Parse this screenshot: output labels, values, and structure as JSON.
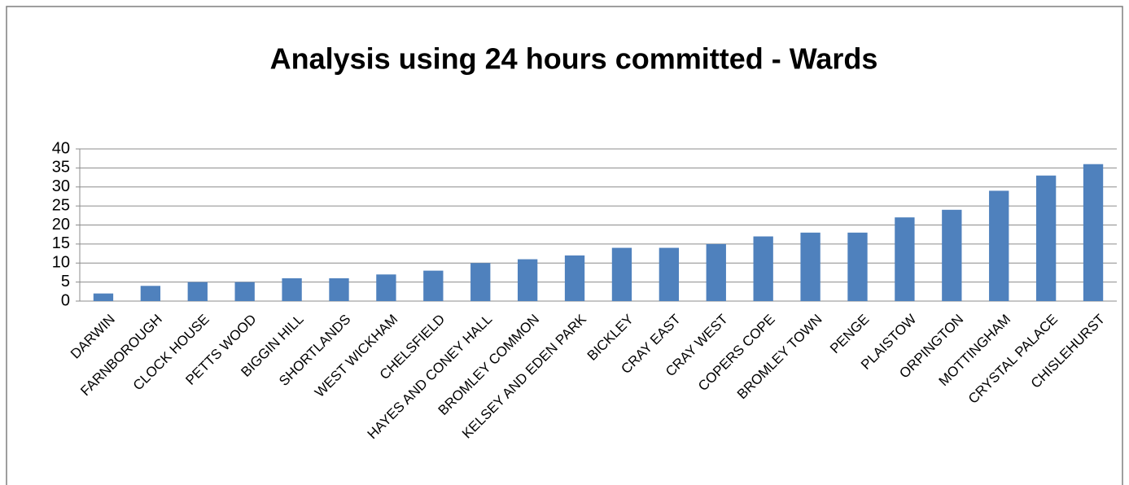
{
  "chart_data": {
    "type": "bar",
    "title": "Analysis using 24 hours committed - Wards",
    "categories": [
      "DARWIN",
      "FARNBOROUGH",
      "CLOCK HOUSE",
      "PETTS WOOD",
      "BIGGIN HILL",
      "SHORTLANDS",
      "WEST WICKHAM",
      "CHELSFIELD",
      "HAYES AND CONEY HALL",
      "BROMLEY COMMON",
      "KELSEY AND EDEN PARK",
      "BICKLEY",
      "CRAY EAST",
      "CRAY WEST",
      "COPERS COPE",
      "BROMLEY TOWN",
      "PENGE",
      "PLAISTOW",
      "ORPINGTON",
      "MOTTINGHAM",
      "CRYSTAL PALACE",
      "CHISLEHURST"
    ],
    "values": [
      2,
      4,
      5,
      5,
      6,
      6,
      7,
      8,
      10,
      11,
      12,
      14,
      14,
      15,
      17,
      18,
      18,
      22,
      24,
      29,
      33,
      36
    ],
    "color": "#4f81bd",
    "ylim": [
      0,
      40
    ],
    "yticks": [
      0,
      5,
      10,
      15,
      20,
      25,
      30,
      35,
      40
    ],
    "grid": true
  }
}
